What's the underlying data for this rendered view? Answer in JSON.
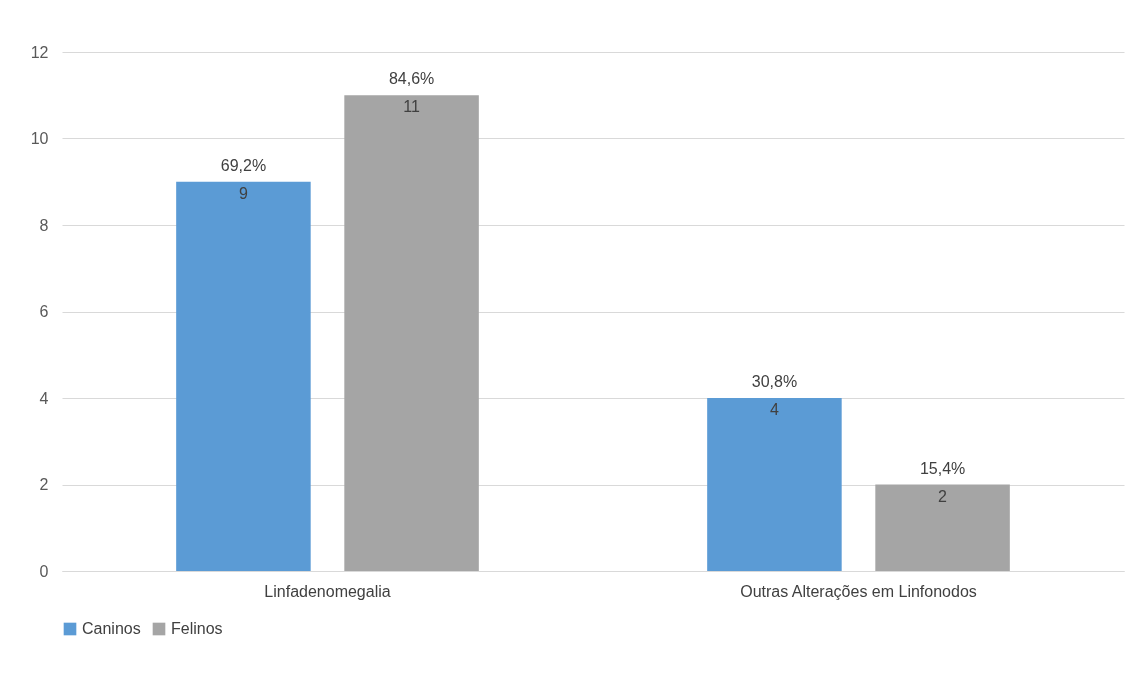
{
  "chart_data": {
    "type": "bar",
    "categories": [
      "Linfadenomegalia",
      "Outras Alterações em Linfonodos"
    ],
    "series": [
      {
        "name": "Caninos",
        "color": "#5b9bd5",
        "values": [
          9,
          4
        ],
        "value_labels": [
          "69,2%\n9",
          "30,8%\n4"
        ]
      },
      {
        "name": "Felinos",
        "color": "#a5a5a5",
        "values": [
          11,
          2
        ],
        "value_labels": [
          "84,6%\n11",
          "15,4%\n2"
        ]
      }
    ],
    "ylim": [
      0,
      12
    ],
    "yticks": [
      0,
      2,
      4,
      6,
      8,
      10,
      12
    ],
    "grid": "y",
    "legend": "bottom"
  }
}
